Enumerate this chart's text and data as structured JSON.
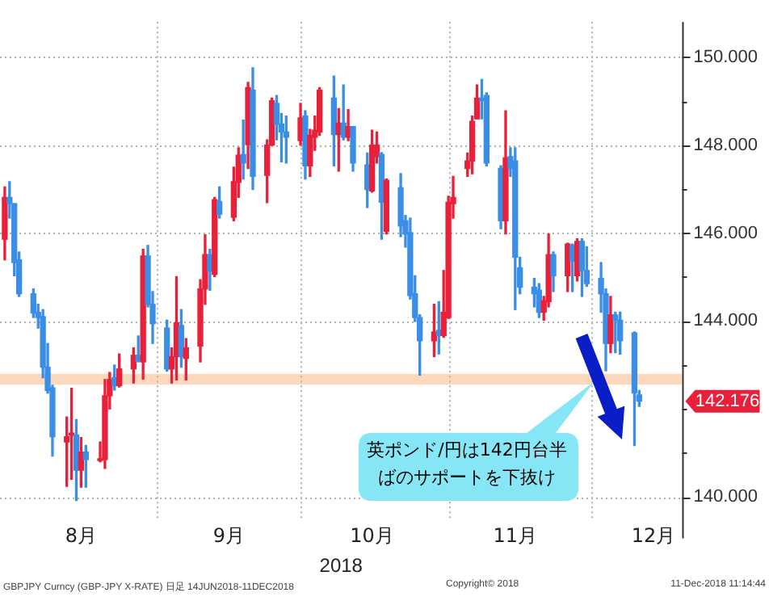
{
  "chart_data": {
    "type": "candlestick",
    "x": [
      "2018-07-31",
      "2018-08-01",
      "2018-08-02",
      "2018-08-03",
      "2018-08-06",
      "2018-08-07",
      "2018-08-08",
      "2018-08-09",
      "2018-08-10",
      "2018-08-13",
      "2018-08-14",
      "2018-08-15",
      "2018-08-16",
      "2018-08-17",
      "2018-08-20",
      "2018-08-21",
      "2018-08-22",
      "2018-08-23",
      "2018-08-24",
      "2018-08-27",
      "2018-08-28",
      "2018-08-29",
      "2018-08-30",
      "2018-08-31",
      "2018-09-03",
      "2018-09-04",
      "2018-09-05",
      "2018-09-06",
      "2018-09-07",
      "2018-09-10",
      "2018-09-11",
      "2018-09-12",
      "2018-09-13",
      "2018-09-14",
      "2018-09-17",
      "2018-09-18",
      "2018-09-19",
      "2018-09-20",
      "2018-09-21",
      "2018-09-24",
      "2018-09-25",
      "2018-09-26",
      "2018-09-27",
      "2018-09-28",
      "2018-10-01",
      "2018-10-02",
      "2018-10-03",
      "2018-10-04",
      "2018-10-05",
      "2018-10-08",
      "2018-10-09",
      "2018-10-10",
      "2018-10-11",
      "2018-10-12",
      "2018-10-15",
      "2018-10-16",
      "2018-10-17",
      "2018-10-18",
      "2018-10-19",
      "2018-10-22",
      "2018-10-23",
      "2018-10-24",
      "2018-10-25",
      "2018-10-26",
      "2018-10-29",
      "2018-10-30",
      "2018-10-31",
      "2018-11-01",
      "2018-11-02",
      "2018-11-05",
      "2018-11-06",
      "2018-11-07",
      "2018-11-08",
      "2018-11-09",
      "2018-11-12",
      "2018-11-13",
      "2018-11-14",
      "2018-11-15",
      "2018-11-16",
      "2018-11-19",
      "2018-11-20",
      "2018-11-21",
      "2018-11-22",
      "2018-11-23",
      "2018-11-26",
      "2018-11-27",
      "2018-11-28",
      "2018-11-29",
      "2018-11-30",
      "2018-12-03",
      "2018-12-04",
      "2018-12-05",
      "2018-12-06",
      "2018-12-07",
      "2018-12-10",
      "2018-12-11"
    ],
    "ohlc": [
      [
        145.86,
        147.05,
        145.39,
        146.81
      ],
      [
        146.81,
        147.17,
        146.34,
        146.67
      ],
      [
        146.67,
        146.67,
        145.03,
        145.33
      ],
      [
        145.39,
        145.57,
        144.56,
        144.62
      ],
      [
        144.62,
        144.73,
        144.08,
        144.18
      ],
      [
        144.2,
        144.38,
        143.84,
        144.08
      ],
      [
        144.1,
        144.26,
        142.71,
        142.95
      ],
      [
        142.95,
        143.49,
        142.36,
        142.42
      ],
      [
        142.48,
        142.54,
        140.93,
        141.37
      ],
      [
        141.25,
        141.82,
        140.24,
        141.37
      ],
      [
        141.4,
        142.47,
        140.4,
        141.45
      ],
      [
        141.41,
        141.76,
        139.92,
        140.61
      ],
      [
        140.61,
        141.35,
        140.22,
        141.02
      ],
      [
        141.02,
        141.17,
        140.22,
        140.85
      ],
      [
        140.83,
        141.25,
        140.8,
        140.87
      ],
      [
        140.85,
        142.67,
        140.65,
        142.3
      ],
      [
        142.3,
        142.83,
        142.0,
        142.67
      ],
      [
        142.71,
        143.0,
        142.43,
        142.53
      ],
      [
        142.53,
        143.25,
        142.5,
        142.91
      ],
      [
        142.91,
        143.39,
        142.59,
        143.22
      ],
      [
        143.22,
        143.66,
        143.07,
        143.09
      ],
      [
        143.07,
        145.63,
        142.68,
        145.48
      ],
      [
        145.48,
        145.72,
        144.32,
        144.38
      ],
      [
        144.38,
        144.67,
        143.49,
        143.94
      ],
      [
        143.84,
        144.02,
        142.86,
        142.91
      ],
      [
        142.91,
        143.39,
        142.59,
        143.19
      ],
      [
        143.19,
        145.01,
        142.66,
        143.96
      ],
      [
        143.9,
        144.26,
        142.95,
        143.19
      ],
      [
        143.15,
        143.6,
        142.66,
        143.39
      ],
      [
        143.43,
        144.94,
        143.07,
        144.73
      ],
      [
        144.73,
        145.96,
        144.38,
        145.51
      ],
      [
        145.51,
        145.63,
        144.7,
        145.13
      ],
      [
        145.06,
        146.81,
        145.01,
        146.76
      ],
      [
        146.72,
        147.05,
        146.34,
        146.43
      ],
      [
        146.36,
        147.5,
        146.28,
        147.17
      ],
      [
        147.15,
        147.94,
        146.81,
        147.77
      ],
      [
        147.79,
        148.57,
        147.23,
        147.59
      ],
      [
        148.01,
        149.43,
        147.47,
        149.31
      ],
      [
        149.25,
        149.76,
        146.99,
        147.29
      ],
      [
        147.31,
        148.12,
        146.69,
        148.0
      ],
      [
        148.0,
        149.07,
        147.99,
        149.01
      ],
      [
        148.95,
        149.13,
        148.12,
        148.48
      ],
      [
        148.48,
        148.72,
        147.62,
        148.3
      ],
      [
        148.3,
        148.66,
        147.59,
        148.18
      ],
      [
        148.1,
        148.95,
        148.0,
        148.62
      ],
      [
        148.66,
        148.78,
        147.23,
        147.53
      ],
      [
        147.53,
        148.36,
        147.29,
        148.22
      ],
      [
        148.18,
        148.66,
        147.88,
        148.34
      ],
      [
        148.3,
        149.31,
        148.22,
        149.25
      ],
      [
        149.07,
        149.57,
        147.53,
        148.24
      ],
      [
        148.24,
        148.83,
        147.41,
        148.5
      ],
      [
        148.5,
        149.37,
        148.12,
        148.18
      ],
      [
        148.18,
        148.81,
        148.1,
        148.42
      ],
      [
        148.42,
        148.42,
        147.41,
        147.59
      ],
      [
        147.55,
        147.82,
        146.58,
        146.99
      ],
      [
        146.96,
        148.34,
        146.93,
        148.0
      ],
      [
        147.74,
        148.3,
        147.59,
        148.0
      ],
      [
        147.79,
        147.83,
        145.86,
        146.7
      ],
      [
        146.04,
        147.23,
        145.98,
        147.2
      ],
      [
        147.03,
        147.35,
        145.92,
        146.16
      ],
      [
        146.28,
        146.4,
        145.68,
        145.98
      ],
      [
        146.01,
        146.34,
        144.5,
        144.58
      ],
      [
        144.62,
        145.03,
        143.99,
        144.08
      ],
      [
        144.08,
        144.14,
        142.77,
        143.55
      ],
      [
        143.55,
        144.38,
        143.19,
        143.75
      ],
      [
        143.79,
        144.44,
        143.25,
        143.67
      ],
      [
        143.67,
        145.15,
        143.63,
        144.2
      ],
      [
        144.08,
        146.84,
        144.06,
        146.7
      ],
      [
        146.67,
        147.29,
        146.34,
        146.81
      ],
      [
        147.47,
        147.82,
        147.29,
        147.64
      ],
      [
        147.64,
        148.66,
        147.35,
        148.54
      ],
      [
        148.6,
        149.37,
        148.6,
        149.07
      ],
      [
        149.07,
        149.49,
        148.6,
        149.01
      ],
      [
        149.13,
        149.19,
        147.53,
        147.59
      ],
      [
        147.47,
        147.53,
        146.1,
        146.28
      ],
      [
        146.28,
        148.78,
        145.98,
        147.71
      ],
      [
        147.74,
        147.94,
        147.29,
        147.47
      ],
      [
        147.64,
        147.94,
        144.26,
        145.45
      ],
      [
        145.21,
        145.45,
        144.62,
        144.77
      ],
      [
        144.77,
        144.97,
        144.32,
        144.62
      ],
      [
        144.7,
        144.85,
        144.08,
        144.2
      ],
      [
        144.2,
        144.56,
        144.02,
        144.46
      ],
      [
        144.44,
        145.98,
        144.32,
        145.51
      ],
      [
        145.51,
        145.57,
        144.67,
        145.03
      ],
      [
        145.03,
        145.77,
        144.67,
        145.75
      ],
      [
        145.72,
        145.75,
        144.67,
        145.36
      ],
      [
        145.03,
        145.87,
        144.91,
        145.81
      ],
      [
        145.81,
        145.87,
        144.56,
        145.15
      ],
      [
        145.15,
        145.69,
        144.79,
        144.85
      ],
      [
        144.97,
        145.33,
        144.2,
        144.62
      ],
      [
        144.62,
        144.73,
        142.87,
        143.49
      ],
      [
        143.49,
        144.56,
        143.28,
        144.14
      ],
      [
        144.14,
        144.2,
        143.28,
        144.02
      ],
      [
        144.02,
        144.2,
        143.25,
        143.55
      ],
      [
        143.73,
        143.75,
        141.17,
        142.36
      ],
      [
        142.32,
        142.42,
        142.06,
        142.176
      ]
    ],
    "xlim": [
      "2018-07-30",
      "2018-12-20"
    ],
    "xticks": [
      {
        "value": "2018-08-16",
        "label": "8月"
      },
      {
        "value": "2018-09-01",
        "label": null
      },
      {
        "value": "2018-09-16",
        "label": "9月"
      },
      {
        "value": "2018-10-01",
        "label": null
      },
      {
        "value": "2018-10-16",
        "label": "10月"
      },
      {
        "value": "2018-11-01",
        "label": null
      },
      {
        "value": "2018-11-15",
        "label": "11月"
      },
      {
        "value": "2018-12-01",
        "label": null
      },
      {
        "value": "2018-12-14",
        "label": "12月"
      }
    ],
    "xlabel": "2018",
    "ylim": [
      139.5,
      150.8
    ],
    "yticks": [
      {
        "value": 140,
        "label": "140.000"
      },
      {
        "value": 141,
        "label": null
      },
      {
        "value": 142,
        "label": null
      },
      {
        "value": 143,
        "label": null
      },
      {
        "value": 144,
        "label": "144.000"
      },
      {
        "value": 145,
        "label": null
      },
      {
        "value": 146,
        "label": "146.000"
      },
      {
        "value": 147,
        "label": null
      },
      {
        "value": 148,
        "label": "148.000"
      },
      {
        "value": 149,
        "label": null
      },
      {
        "value": 150,
        "label": "150.000"
      }
    ],
    "grid": true,
    "bands": [
      {
        "axis": "y",
        "from": 142.55,
        "to": 142.8,
        "color": "#fcd9bd"
      }
    ],
    "annotations": [
      "英ポンド/円は142円台半ばのサポートを下抜け",
      "142.176",
      "GBPJPY Curncy (GBP-JPY X-RATE)  日足 14JUN2018-11DEC2018",
      "Copyright© 2018",
      "11-Dec-2018 11:14:44"
    ]
  }
}
